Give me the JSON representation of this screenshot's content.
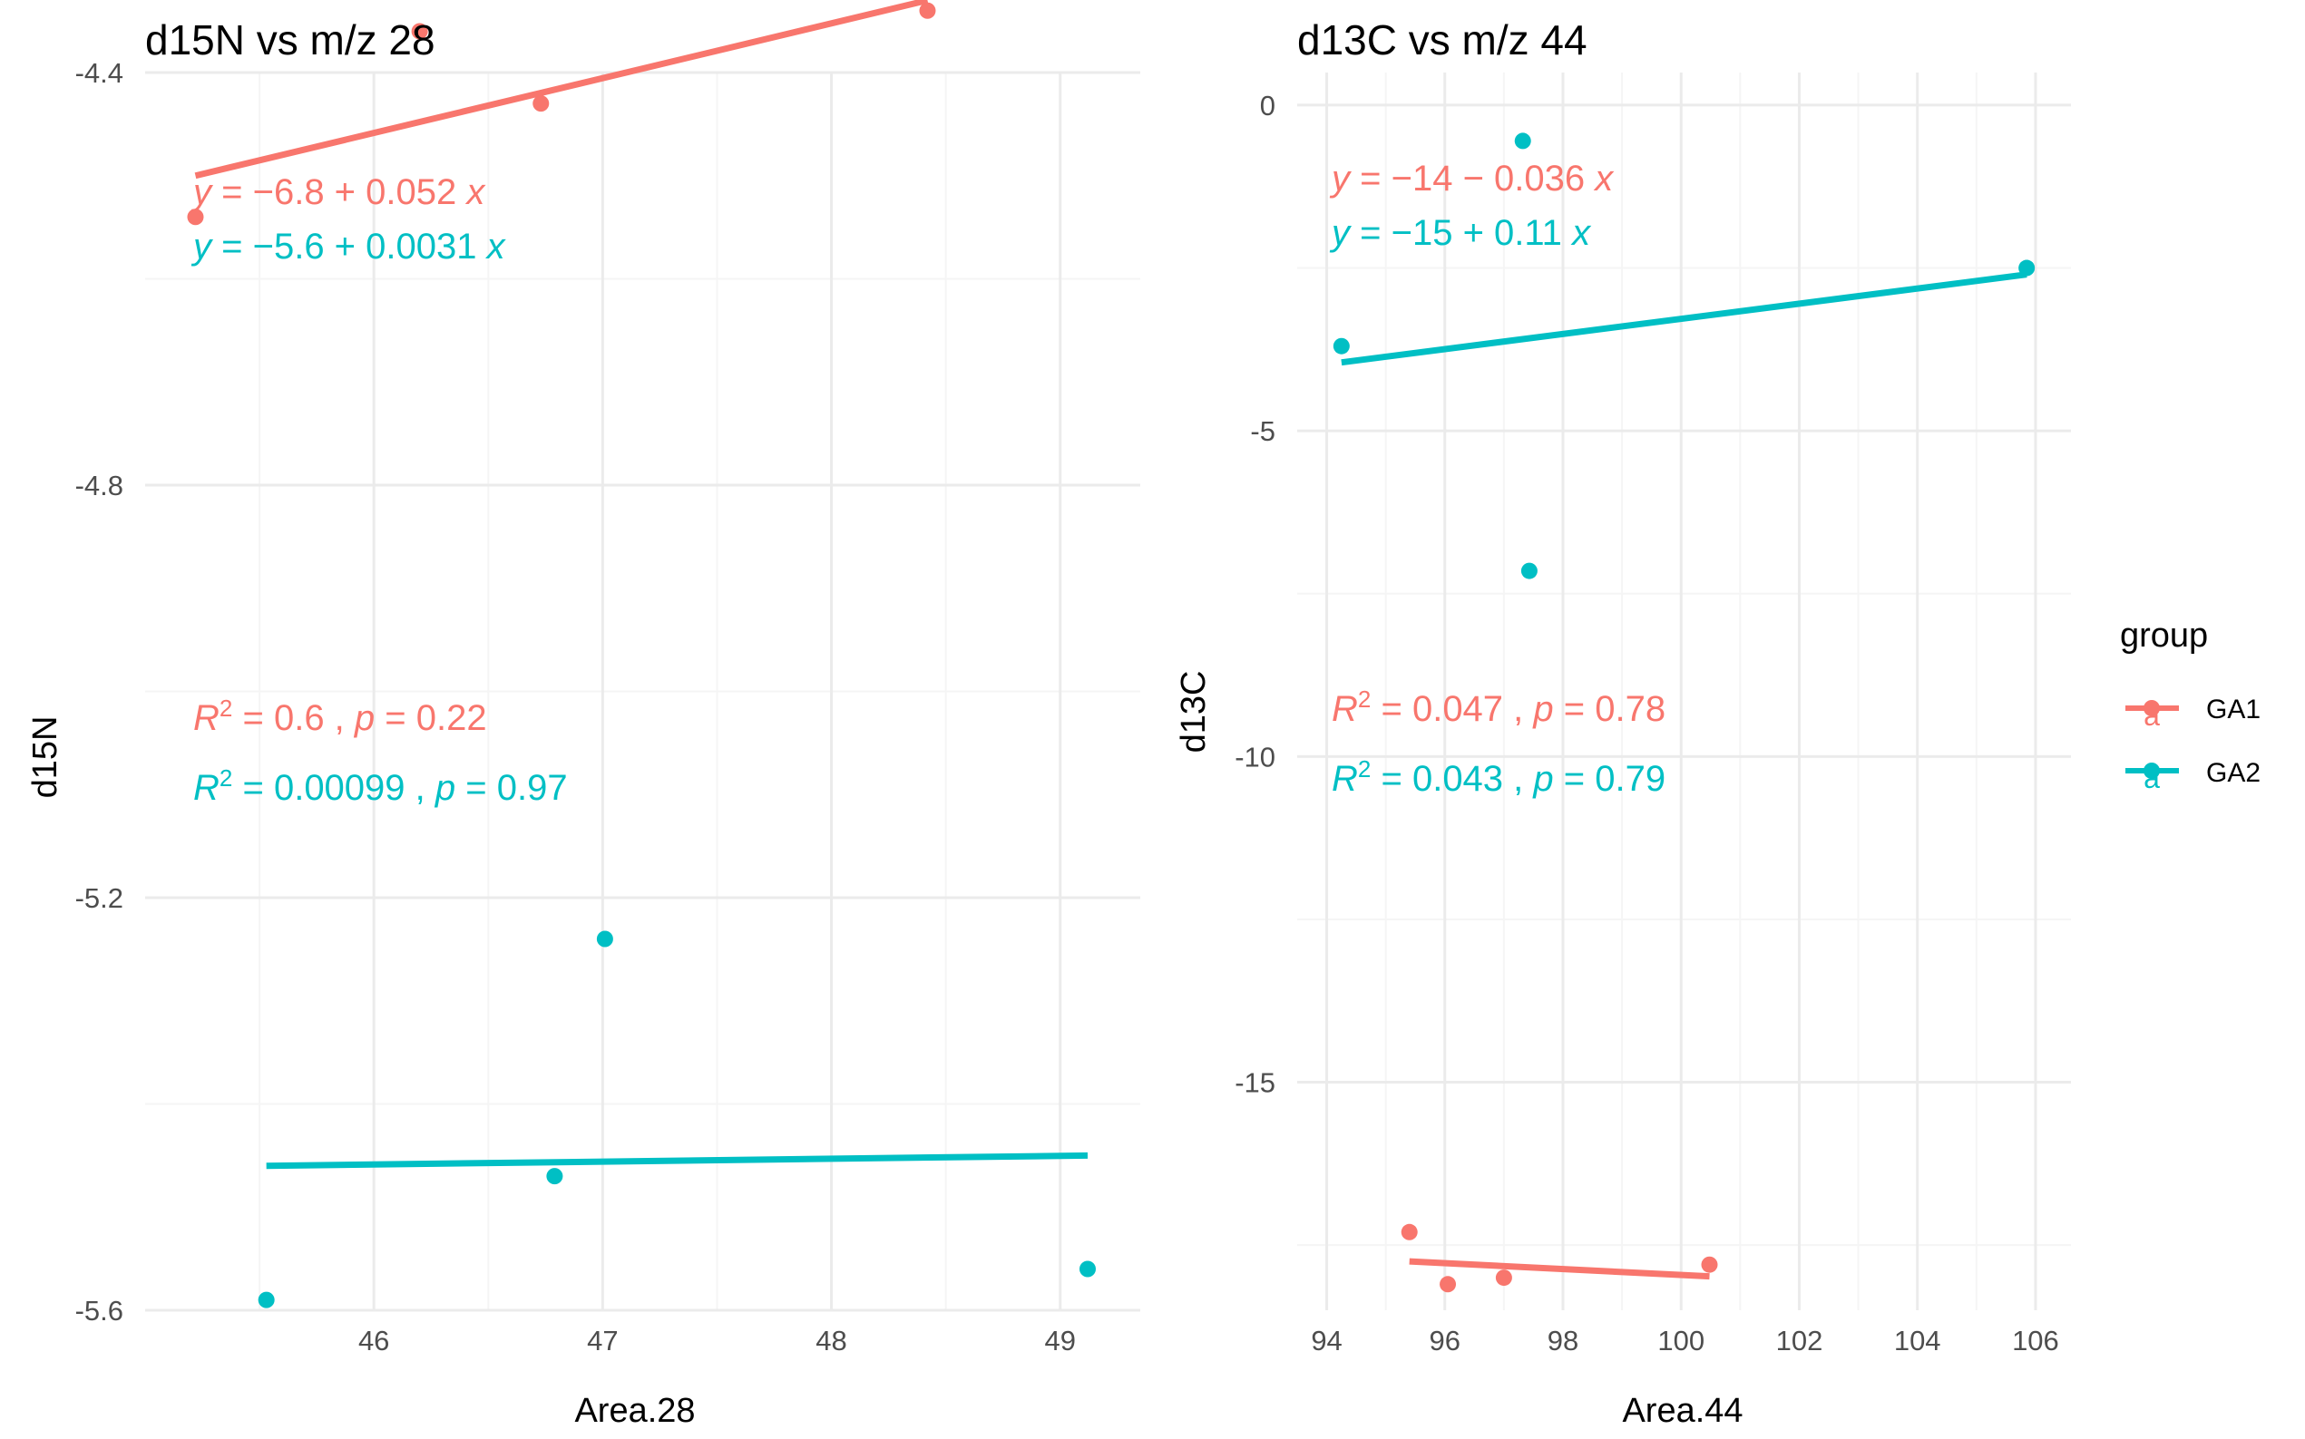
{
  "colors": {
    "GA1": "#F8766D",
    "GA2": "#00BFC4",
    "grid_major": "#EBEBEB",
    "grid_minor": "#F5F5F5"
  },
  "legend": {
    "title": "group",
    "items": [
      {
        "label": "GA1",
        "key_glyph": "a"
      },
      {
        "label": "GA2",
        "key_glyph": "a"
      }
    ]
  },
  "chart_data": [
    {
      "type": "scatter",
      "title": "d15N vs m/z 28",
      "xlabel": "Area.28",
      "ylabel": "d15N",
      "xlim": [
        45.0,
        49.35
      ],
      "ylim": [
        -5.6,
        -4.4
      ],
      "xticks": [
        46,
        47,
        48,
        49
      ],
      "xtick_labels": [
        "46",
        "47",
        "48",
        "49"
      ],
      "yticks": [
        -5.6,
        -5.2,
        -4.8,
        -4.4
      ],
      "ytick_labels": [
        "-5.6",
        "-5.2",
        "-4.8",
        "-4.4"
      ],
      "grid": true,
      "series": [
        {
          "name": "GA1",
          "color": "#F8766D",
          "x": [
            45.22,
            46.2,
            46.73,
            48.42
          ],
          "y": [
            -4.54,
            -4.36,
            -4.43,
            -4.34
          ],
          "fit": {
            "x": [
              45.22,
              48.42
            ],
            "y": [
              -4.5,
              -4.33
            ]
          },
          "eq": {
            "intercept": "−6.8",
            "op": "+",
            "slope": "0.052"
          },
          "stats": {
            "r2": "0.6",
            "p": "0.22"
          }
        },
        {
          "name": "GA2",
          "color": "#00BFC4",
          "x": [
            45.53,
            47.01,
            46.79,
            49.12
          ],
          "y": [
            -5.59,
            -5.24,
            -5.47,
            -5.56
          ],
          "fit": {
            "x": [
              45.53,
              49.12
            ],
            "y": [
              -5.46,
              -5.45
            ]
          },
          "eq": {
            "intercept": "−5.6",
            "op": "+",
            "slope": "0.0031"
          },
          "stats": {
            "r2": "0.00099",
            "p": "0.97"
          }
        }
      ]
    },
    {
      "type": "scatter",
      "title": "d13C vs m/z 44",
      "xlabel": "Area.44",
      "ylabel": "d13C",
      "xlim": [
        93.5,
        106.6
      ],
      "ylim": [
        -18.5,
        0.5
      ],
      "xticks": [
        94,
        96,
        98,
        100,
        102,
        104,
        106
      ],
      "xtick_labels": [
        "94",
        "96",
        "98",
        "100",
        "102",
        "104",
        "106"
      ],
      "yticks": [
        -15,
        -10,
        -5,
        0
      ],
      "ytick_labels": [
        "-15",
        "-10",
        "-5",
        "0"
      ],
      "grid": true,
      "series": [
        {
          "name": "GA1",
          "color": "#F8766D",
          "x": [
            95.4,
            96.05,
            97.0,
            100.48
          ],
          "y": [
            -17.3,
            -18.1,
            -18.0,
            -17.8
          ],
          "fit": {
            "x": [
              95.4,
              100.48
            ],
            "y": [
              -17.75,
              -17.98
            ]
          },
          "eq": {
            "intercept": "−14",
            "op": "−",
            "slope": "0.036"
          },
          "stats": {
            "r2": "0.047",
            "p": "0.78"
          }
        },
        {
          "name": "GA2",
          "color": "#00BFC4",
          "x": [
            94.25,
            97.32,
            97.43,
            105.85
          ],
          "y": [
            -3.7,
            -0.55,
            -7.15,
            -2.5
          ],
          "fit": {
            "x": [
              94.25,
              105.85
            ],
            "y": [
              -3.95,
              -2.6
            ]
          },
          "eq": {
            "intercept": "−15",
            "op": "+",
            "slope": "0.11"
          },
          "stats": {
            "r2": "0.043",
            "p": "0.79"
          }
        }
      ]
    }
  ]
}
